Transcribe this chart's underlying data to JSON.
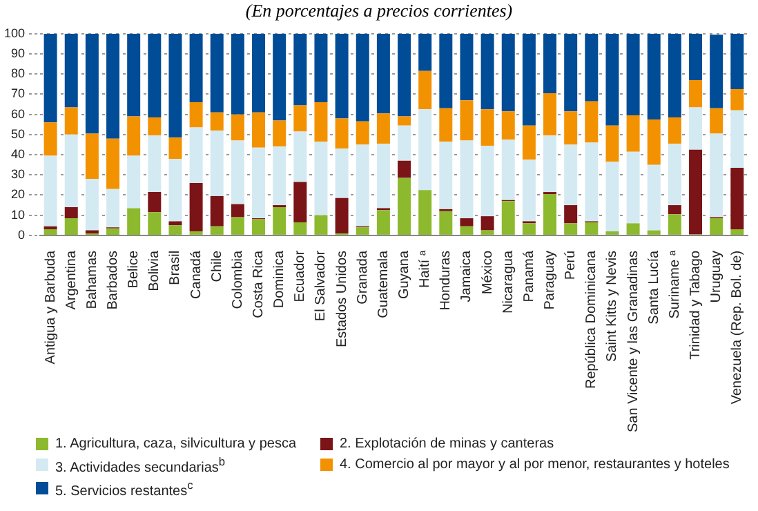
{
  "chart_data": {
    "type": "bar",
    "title": "(En porcentajes a precios corrientes)",
    "stacked": true,
    "grid": "y",
    "legend": "bottom",
    "ylim": [
      0,
      100
    ],
    "yticks": [
      0,
      10,
      20,
      30,
      40,
      50,
      60,
      70,
      80,
      90,
      100
    ],
    "categories": [
      "Antigua y Barbuda",
      "Argentina",
      "Bahamas",
      "Barbados",
      "Belice",
      "Bolivia",
      "Brasil",
      "Canadá",
      "Chile",
      "Colombia",
      "Costa Rica",
      "Dominica",
      "Ecuador",
      "El Salvador",
      "Estados Unidos",
      "Granada",
      "Guatemala",
      "Guyana",
      "Haití ᵃ",
      "Honduras",
      "Jamaica",
      "México",
      "Nicaragua",
      "Panamá",
      "Paraguay",
      "Perú",
      "República Dominicana",
      "Saint Kitts y Nevis",
      "San Vicente y las Granadinas",
      "Santa Lucía",
      "Suriname ᵃ",
      "Trinidad y Tabago",
      "Uruguay",
      "Venezuela (Rep. Bol. de)"
    ],
    "series": [
      {
        "name": "1. Agricultura, caza, silvicultura y pesca",
        "color": "#8db92e",
        "values": [
          3,
          8.5,
          1,
          3.5,
          13.5,
          11.5,
          5,
          2,
          4.5,
          9,
          8,
          14,
          6.5,
          10,
          1,
          4,
          12.5,
          28.5,
          22.5,
          12,
          4.5,
          2.5,
          17,
          6,
          20.5,
          6,
          6.5,
          2,
          6,
          2.5,
          10.5,
          0.5,
          8.5,
          3
        ]
      },
      {
        "name": "2. Explotación de minas y canteras",
        "color": "#7b1416",
        "values": [
          1.5,
          5.5,
          1.5,
          0.5,
          0,
          10,
          2,
          24,
          15,
          6.5,
          0.5,
          1,
          20,
          0,
          17.5,
          0.5,
          1,
          8.5,
          0,
          1,
          4,
          7,
          0.5,
          1,
          1,
          9,
          0.5,
          0,
          0,
          0,
          4.5,
          42,
          0.5,
          30.5
        ]
      },
      {
        "name": "3. Actividades secundarias$^{b}$",
        "color": "#d4eaf3",
        "values": [
          35,
          36,
          25.5,
          19,
          26,
          28,
          31,
          27.5,
          32.5,
          31.5,
          35,
          29,
          25,
          36.5,
          24.5,
          40.5,
          32,
          17.5,
          40,
          33.5,
          38.5,
          35,
          30,
          30.5,
          28,
          30,
          39,
          34.5,
          35.5,
          32.5,
          30.5,
          21,
          41.5,
          28.5
        ]
      },
      {
        "name": "4. Comercio al por mayor y al por menor, restaurantes y hoteles",
        "color": "#f39200",
        "values": [
          16.5,
          13.5,
          22.5,
          25,
          19.5,
          9,
          10.5,
          12.5,
          9,
          13,
          17.5,
          13,
          13,
          19.5,
          15,
          11.5,
          15,
          4.5,
          19,
          16.5,
          20,
          18,
          14,
          17,
          21,
          16.5,
          20.5,
          18,
          18,
          22.5,
          13,
          13.5,
          12.5,
          10.5
        ]
      },
      {
        "name": "5. Servicios restantes$^{c}$",
        "color": "#004c97",
        "values": [
          44,
          36.5,
          49.5,
          52,
          41,
          41.5,
          51.5,
          34,
          39,
          40,
          39,
          43,
          35.5,
          34,
          42,
          43.5,
          39.5,
          41,
          18.5,
          37,
          33,
          37.5,
          38.5,
          45.5,
          29.5,
          38.5,
          33.5,
          45.5,
          40.5,
          42.5,
          41.5,
          23,
          36.5,
          27.5
        ]
      }
    ]
  }
}
